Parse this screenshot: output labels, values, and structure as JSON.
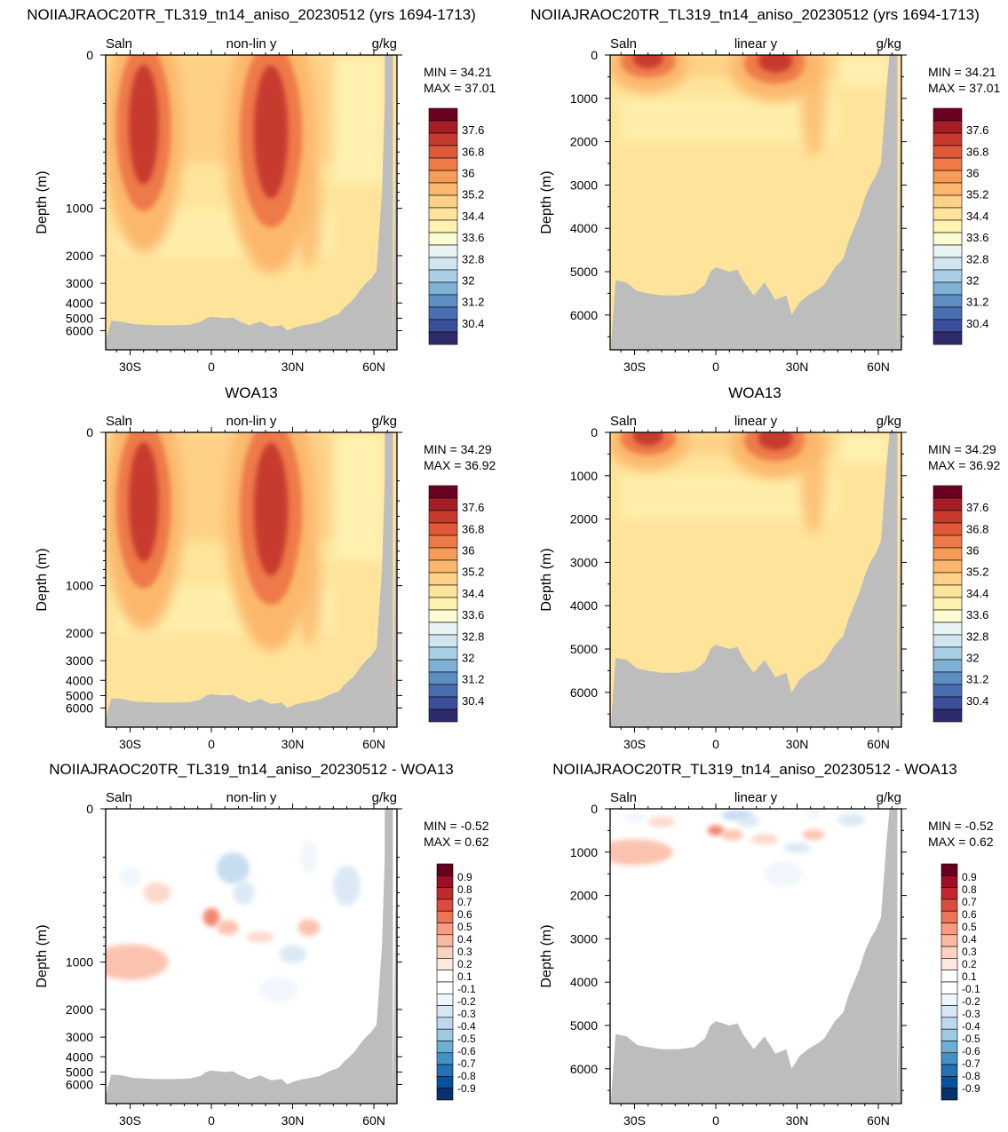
{
  "colors": {
    "land": "#bdbdbd",
    "frame": "#000000",
    "salinity_levels": [
      "#2e2a6b",
      "#3b4e9c",
      "#4a6fb0",
      "#5f8ec3",
      "#7fb0d6",
      "#a9cfe6",
      "#cfe6f1",
      "#e8f4f3",
      "#fbfbd2",
      "#fff1b0",
      "#fee49a",
      "#fdd187",
      "#fbb86d",
      "#f79b58",
      "#ee7a48",
      "#e05a3a",
      "#c73b2e",
      "#a51d27",
      "#6b0222"
    ],
    "difference_levels": [
      "#08306b",
      "#08519c",
      "#2171b5",
      "#4292c6",
      "#6baed6",
      "#9ecae1",
      "#bdd7ee",
      "#d6e6f4",
      "#eef5fb",
      "#ffffff",
      "#ffffff",
      "#fde8e0",
      "#fcd3c1",
      "#fbb9a2",
      "#f89a7d",
      "#ee7458",
      "#dc4c3e",
      "#c1272d",
      "#9e0e26",
      "#67001f"
    ]
  },
  "chart_data": [
    {
      "id": "model_nonlin",
      "type": "heatmap",
      "title": "NOIIAJRAOC20TR_TL319_tn14_aniso_20230512 (yrs 1694-1713)",
      "variable": "Saln",
      "scale_label": "non-lin y",
      "units": "g/kg",
      "ylabel": "Depth (m)",
      "x_ticks": [
        "30S",
        "0",
        "30N",
        "60N"
      ],
      "y_ticks": [
        "0",
        "1000",
        "2000",
        "3000",
        "4000",
        "5000",
        "6000"
      ],
      "min_label": "MIN =  34.21",
      "max_label": "MAX =  37.01",
      "min": 34.21,
      "max": 37.01,
      "colorbar_labels": [
        "37.6",
        "36.8",
        "36",
        "35.2",
        "34.4",
        "33.6",
        "32.8",
        "32",
        "31.2",
        "30.4"
      ]
    },
    {
      "id": "model_lin",
      "type": "heatmap",
      "title": "NOIIAJRAOC20TR_TL319_tn14_aniso_20230512 (yrs 1694-1713)",
      "variable": "Saln",
      "scale_label": "linear y",
      "units": "g/kg",
      "ylabel": "Depth (m)",
      "x_ticks": [
        "30S",
        "0",
        "30N",
        "60N"
      ],
      "y_ticks": [
        "0",
        "1000",
        "2000",
        "3000",
        "4000",
        "5000",
        "6000"
      ],
      "min_label": "MIN =  34.21",
      "max_label": "MAX =  37.01",
      "min": 34.21,
      "max": 37.01,
      "colorbar_labels": [
        "37.6",
        "36.8",
        "36",
        "35.2",
        "34.4",
        "33.6",
        "32.8",
        "32",
        "31.2",
        "30.4"
      ]
    },
    {
      "id": "obs_nonlin",
      "type": "heatmap",
      "title": "WOA13",
      "variable": "Saln",
      "scale_label": "non-lin y",
      "units": "g/kg",
      "ylabel": "Depth (m)",
      "x_ticks": [
        "30S",
        "0",
        "30N",
        "60N"
      ],
      "y_ticks": [
        "0",
        "1000",
        "2000",
        "3000",
        "4000",
        "5000",
        "6000"
      ],
      "min_label": "MIN =  34.29",
      "max_label": "MAX =  36.92",
      "min": 34.29,
      "max": 36.92,
      "colorbar_labels": [
        "37.6",
        "36.8",
        "36",
        "35.2",
        "34.4",
        "33.6",
        "32.8",
        "32",
        "31.2",
        "30.4"
      ]
    },
    {
      "id": "obs_lin",
      "type": "heatmap",
      "title": "WOA13",
      "variable": "Saln",
      "scale_label": "linear y",
      "units": "g/kg",
      "ylabel": "Depth (m)",
      "x_ticks": [
        "30S",
        "0",
        "30N",
        "60N"
      ],
      "y_ticks": [
        "0",
        "1000",
        "2000",
        "3000",
        "4000",
        "5000",
        "6000"
      ],
      "min_label": "MIN =  34.29",
      "max_label": "MAX =  36.92",
      "min": 34.29,
      "max": 36.92,
      "colorbar_labels": [
        "37.6",
        "36.8",
        "36",
        "35.2",
        "34.4",
        "33.6",
        "32.8",
        "32",
        "31.2",
        "30.4"
      ]
    },
    {
      "id": "diff_nonlin",
      "type": "heatmap",
      "title": "NOIIAJRAOC20TR_TL319_tn14_aniso_20230512 - WOA13",
      "variable": "Saln",
      "scale_label": "non-lin y",
      "units": "g/kg",
      "ylabel": "Depth (m)",
      "x_ticks": [
        "30S",
        "0",
        "30N",
        "60N"
      ],
      "y_ticks": [
        "0",
        "1000",
        "2000",
        "3000",
        "4000",
        "5000",
        "6000"
      ],
      "min_label": "MIN = -0.52",
      "max_label": "MAX =  0.62",
      "min": -0.52,
      "max": 0.62,
      "colorbar_labels": [
        "0.9",
        "0.8",
        "0.7",
        "0.6",
        "0.5",
        "0.4",
        "0.3",
        "0.2",
        "0.1",
        "-0.1",
        "-0.2",
        "-0.3",
        "-0.4",
        "-0.5",
        "-0.6",
        "-0.7",
        "-0.8",
        "-0.9"
      ]
    },
    {
      "id": "diff_lin",
      "type": "heatmap",
      "title": "NOIIAJRAOC20TR_TL319_tn14_aniso_20230512 - WOA13",
      "variable": "Saln",
      "scale_label": "linear y",
      "units": "g/kg",
      "ylabel": "Depth (m)",
      "x_ticks": [
        "30S",
        "0",
        "30N",
        "60N"
      ],
      "y_ticks": [
        "0",
        "1000",
        "2000",
        "3000",
        "4000",
        "5000",
        "6000"
      ],
      "min_label": "MIN = -0.52",
      "max_label": "MAX =  0.62",
      "min": -0.52,
      "max": 0.62,
      "colorbar_labels": [
        "0.9",
        "0.8",
        "0.7",
        "0.6",
        "0.5",
        "0.4",
        "0.3",
        "0.2",
        "0.1",
        "-0.1",
        "-0.2",
        "-0.3",
        "-0.4",
        "-0.5",
        "-0.6",
        "-0.7",
        "-0.8",
        "-0.9"
      ]
    }
  ]
}
